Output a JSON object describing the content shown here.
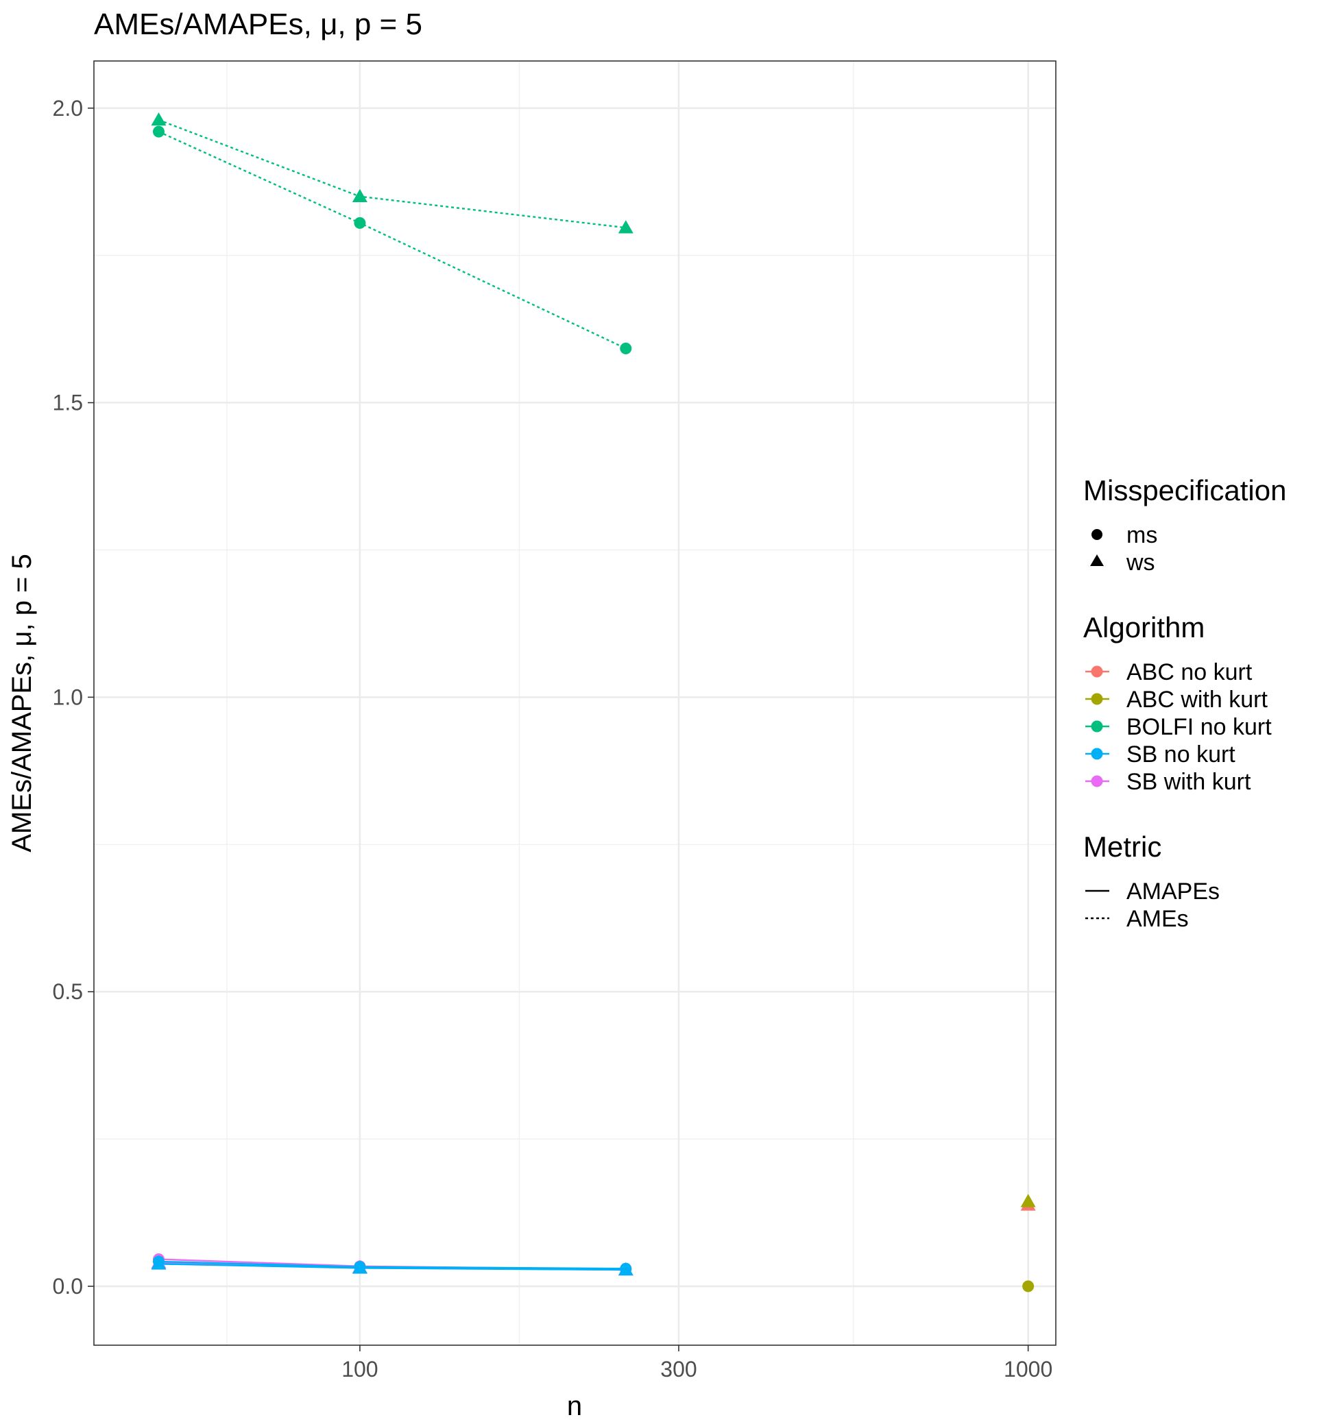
{
  "chart_data": {
    "type": "line",
    "title": "AMEs/AMAPEs, μ, p = 5",
    "xlabel": "n",
    "ylabel": "AMEs/AMAPEs, μ, p = 5",
    "x_scale": "log10",
    "xlim": [
      40,
      1100
    ],
    "ylim": [
      -0.1,
      2.08
    ],
    "x_ticks": [
      100,
      300,
      1000
    ],
    "x_tick_labels": [
      "100",
      "300",
      "1000"
    ],
    "y_ticks": [
      0.0,
      0.5,
      1.0,
      1.5,
      2.0
    ],
    "y_tick_labels": [
      "0.0",
      "0.5",
      "1.0",
      "1.5",
      "2.0"
    ],
    "grid": true,
    "legend_position": "right",
    "legends": {
      "misspecification": {
        "title": "Misspecification",
        "items": [
          {
            "label": "ms",
            "shape": "circle"
          },
          {
            "label": "ws",
            "shape": "triangle"
          }
        ]
      },
      "algorithm": {
        "title": "Algorithm",
        "items": [
          {
            "label": "ABC no kurt",
            "color": "#F8766D"
          },
          {
            "label": "ABC with kurt",
            "color": "#A3A500"
          },
          {
            "label": "BOLFI no kurt",
            "color": "#00BF7D"
          },
          {
            "label": "SB no kurt",
            "color": "#00B0F6"
          },
          {
            "label": "SB with kurt",
            "color": "#E76BF3"
          }
        ]
      },
      "metric": {
        "title": "Metric",
        "items": [
          {
            "label": "AMAPEs",
            "dash": "solid"
          },
          {
            "label": "AMEs",
            "dash": "dotted"
          }
        ]
      }
    },
    "series": [
      {
        "algorithm": "BOLFI no kurt",
        "misspecification": "ms",
        "metric": "AMEs",
        "color": "#00BF7D",
        "x": [
          50,
          100,
          250
        ],
        "y": [
          1.96,
          1.805,
          1.592
        ]
      },
      {
        "algorithm": "BOLFI no kurt",
        "misspecification": "ws",
        "metric": "AMEs",
        "color": "#00BF7D",
        "x": [
          50,
          100,
          250
        ],
        "y": [
          1.98,
          1.85,
          1.797
        ]
      },
      {
        "algorithm": "SB with kurt",
        "misspecification": "ms",
        "metric": "AMAPEs",
        "color": "#E76BF3",
        "x": [
          50,
          100,
          250
        ],
        "y": [
          0.046,
          0.034,
          0.029
        ]
      },
      {
        "algorithm": "SB with kurt",
        "misspecification": "ws",
        "metric": "AMAPEs",
        "color": "#E76BF3",
        "x": [
          50,
          100,
          250
        ],
        "y": [
          0.04,
          0.032,
          0.028
        ]
      },
      {
        "algorithm": "SB no kurt",
        "misspecification": "ms",
        "metric": "AMAPEs",
        "color": "#00B0F6",
        "x": [
          50,
          100,
          250
        ],
        "y": [
          0.042,
          0.033,
          0.03
        ]
      },
      {
        "algorithm": "SB no kurt",
        "misspecification": "ws",
        "metric": "AMAPEs",
        "color": "#00B0F6",
        "x": [
          50,
          100,
          250
        ],
        "y": [
          0.038,
          0.031,
          0.028
        ]
      },
      {
        "algorithm": "ABC no kurt",
        "misspecification": "ws",
        "metric": "AMAPEs",
        "color": "#F8766D",
        "x": [
          1000
        ],
        "y": [
          0.138
        ]
      },
      {
        "algorithm": "ABC with kurt",
        "misspecification": "ws",
        "metric": "AMAPEs",
        "color": "#A3A500",
        "x": [
          1000
        ],
        "y": [
          0.144
        ]
      },
      {
        "algorithm": "ABC with kurt",
        "misspecification": "ms",
        "metric": "AMEs",
        "color": "#A3A500",
        "x": [
          1000
        ],
        "y": [
          0.0
        ]
      }
    ]
  }
}
